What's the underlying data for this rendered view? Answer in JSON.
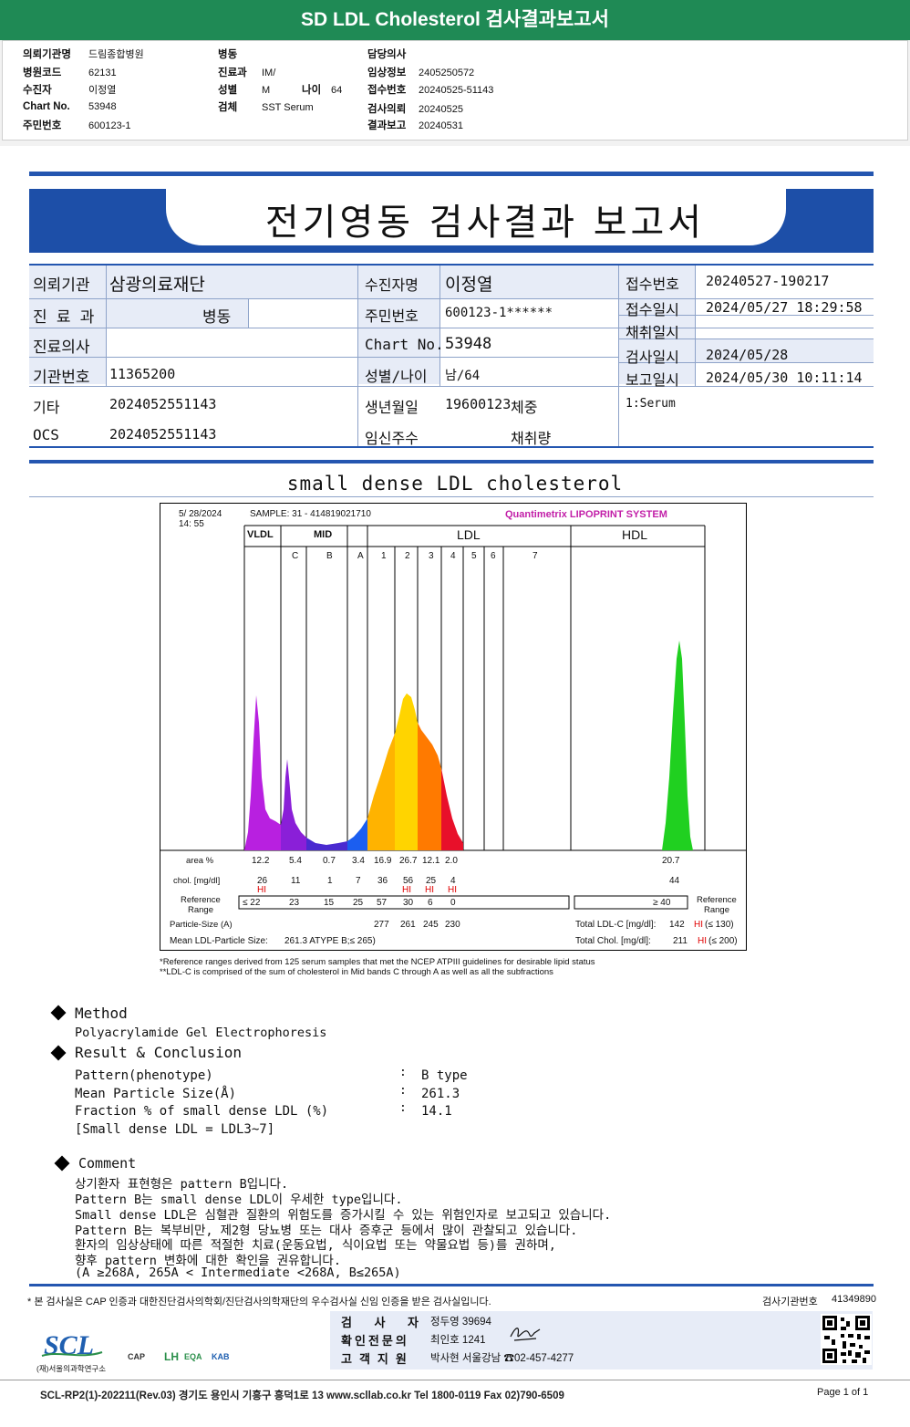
{
  "header": {
    "title": "SD LDL Cholesterol 검사결과보고서",
    "col1": [
      {
        "k": "의뢰기관명",
        "v": "드림종합병원"
      },
      {
        "k": "병원코드",
        "v": "62131"
      },
      {
        "k": "수진자",
        "v": "이정열"
      },
      {
        "k": "Chart No.",
        "v": "53948"
      },
      {
        "k": "주민번호",
        "v": "600123-1"
      }
    ],
    "col2": [
      {
        "k": "병동",
        "v": ""
      },
      {
        "k": "진료과",
        "v": "IM/"
      },
      {
        "k": "성별",
        "v": "M"
      },
      {
        "k": "검체",
        "v": "SST Serum"
      }
    ],
    "age_label": "나이",
    "age_value": "64",
    "col3": [
      {
        "k": "담당의사",
        "v": ""
      },
      {
        "k": "임상정보",
        "v": "2405250572"
      },
      {
        "k": "접수번호",
        "v": "20240525-51143"
      },
      {
        "k": "검사의뢰",
        "v": "20240525"
      },
      {
        "k": "결과보고",
        "v": "20240531"
      }
    ]
  },
  "report": {
    "title": "전기영동 검사결과 보고서",
    "labels": {
      "institution": "의뢰기관",
      "dept": "진 료 과",
      "doctor": "진료의사",
      "inst_no": "기관번호",
      "etc": "기타",
      "ocs": "OCS",
      "patient": "수진자명",
      "ssn": "주민번호",
      "chart": "Chart No.",
      "sexage": "성별/나이",
      "birth": "생년월일",
      "pregnancy": "임신주수",
      "receipt_no": "접수번호",
      "receipt_date": "접수일시",
      "collect_date": "채취일시",
      "test_date": "검사일시",
      "report_date": "보고일시",
      "weight": "체중",
      "volume": "채취량"
    },
    "values": {
      "institution": "삼광의료재단",
      "ward": "병동",
      "inst_no": "11365200",
      "etc": "2024052551143",
      "ocs": "2024052551143",
      "patient": "이정열",
      "ssn": "600123-1******",
      "chart": "53948",
      "sexage": "남/64",
      "birth": "19600123",
      "receipt_no": "20240527-190217",
      "receipt_date": "2024/05/27 18:29:58",
      "test_date": "2024/05/28",
      "report_date": "2024/05/30 10:11:14",
      "specimen": "1:Serum"
    }
  },
  "section_title": "small dense LDL cholesterol",
  "chart_data": {
    "type": "area",
    "title": "Quantimetrix LIPOPRINT SYSTEM",
    "date": "5/ 28/2024",
    "time": "14: 55",
    "sample": "SAMPLE:   31 - 414819021710",
    "groups": [
      "VLDL",
      "MID",
      "LDL",
      "HDL"
    ],
    "bands": [
      "C",
      "B",
      "A",
      "1",
      "2",
      "3",
      "4",
      "5",
      "6",
      "7"
    ],
    "rows": {
      "area_label": "area %",
      "chol_label": "chol. [mg/dl]",
      "ref_label1": "Reference",
      "ref_label2": "Range",
      "area": [
        "12.2",
        "5.4",
        "0.7",
        "3.4",
        "16.9",
        "26.7",
        "12.1",
        "2.0",
        "20.7"
      ],
      "chol": [
        "26",
        "11",
        "1",
        "7",
        "36",
        "56",
        "25",
        "4",
        "44"
      ],
      "hi": [
        "HI",
        "",
        "",
        "",
        "",
        "HI",
        "HI",
        "HI",
        ""
      ],
      "ref": [
        "≤ 22",
        "23",
        "15",
        "25",
        "57",
        "30",
        "6",
        "0"
      ],
      "hdl_ref": "≥  40",
      "particle_label": "Particle-Size (A)",
      "particle": [
        "277",
        "261",
        "245",
        "230"
      ],
      "mean_label": "Mean LDL-Particle Size:",
      "mean_value": "261.3  ATYPE B;≤ 265)",
      "total_ldl_label": "Total LDL-C  [mg/dl]:",
      "total_ldl_value": "142",
      "total_ldl_hi": "HI",
      "total_ldl_ref": "(≤ 130)",
      "total_chol_label": "Total Chol.  [mg/dl]:",
      "total_chol_value": "211",
      "total_chol_hi": "HI",
      "total_chol_ref": "(≤ 200)"
    }
  },
  "footnotes": [
    "*Reference ranges derived from 125 serum samples that met the NCEP ATPIII guidelines for desirable lipid status",
    "**LDL-C is comprised of the sum of cholesterol in Mid bands C through A as well as all the subfractions"
  ],
  "method": {
    "title": "Method",
    "value": "Polyacrylamide Gel Electrophoresis"
  },
  "result": {
    "title": "Result & Conclusion",
    "items": [
      {
        "k": "Pattern(phenotype)",
        "v": "B type"
      },
      {
        "k": "Mean Particle Size(Å)",
        "v": "261.3"
      },
      {
        "k": "Fraction % of small dense LDL (%)",
        "v": "14.1"
      }
    ],
    "note": "[Small dense LDL = LDL3~7]"
  },
  "comment": {
    "title": "Comment",
    "lines": [
      "상기환자 표현형은 pattern B입니다.",
      "Pattern B는 small dense LDL이 우세한 type입니다.",
      "Small dense LDL은 심혈관 질환의 위험도를 증가시킬 수 있는 위험인자로 보고되고 있습니다.",
      "Pattern B는 복부비만, 제2형 당뇨병 또는 대사 증후군 등에서 많이 관찰되고 있습니다.",
      "환자의 임상상태에 따른 적절한 치료(운동요법, 식이요법 또는 약물요법 등)를 권하며,",
      "향후 pattern 변화에 대한 확인을 권유합니다.",
      "(A ≥268A, 265A < Intermediate <268A, B≤265A)"
    ]
  },
  "footer": {
    "cert": "* 본 검사실은 CAP 인증과 대한진단검사의학회/진단검사의학재단의 우수검사실 신임 인증을 받은 검사실입니다.",
    "inst_label": "검사기관번호",
    "inst_no": "41349890",
    "signers": [
      {
        "k": "검 사 자",
        "v": "정두영 39694"
      },
      {
        "k": "확인전문의",
        "v": "최인호 1241"
      },
      {
        "k": "고객지원",
        "v": "박사현 서울강남 ☎02-457-4277"
      }
    ],
    "logo_name": "SCL",
    "logo_sub": "(재)서울의과학연구소",
    "cert_marks": [
      "CAP",
      "LH",
      "EQA",
      "KAB"
    ],
    "address": "SCL-RP2(1)-202211(Rev.03)  경기도 용인시 기흥구 흥덕1로 13  www.scllab.co.kr  Tel 1800-0119   Fax 02)790-6509",
    "page": "Page 1 of 1"
  }
}
